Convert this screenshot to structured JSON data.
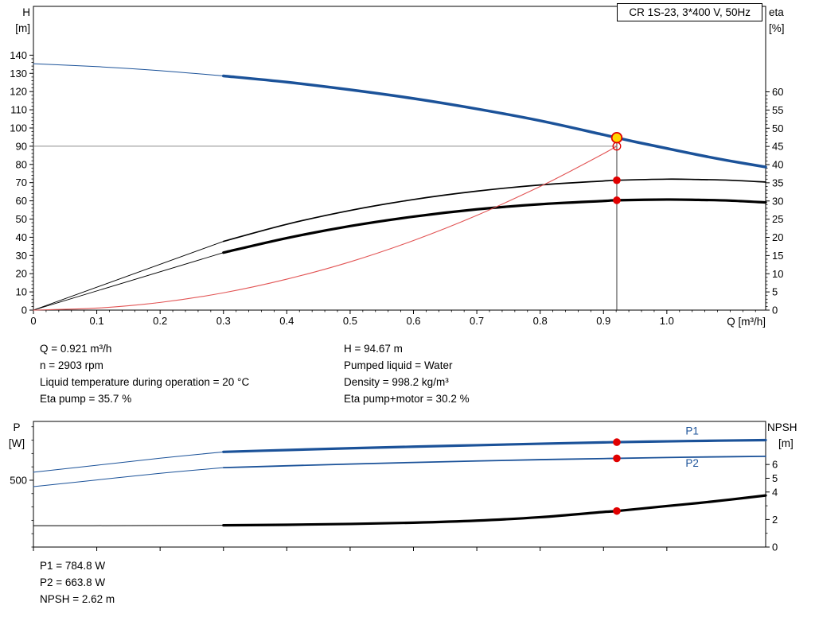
{
  "title_box": {
    "label": "CR 1S-23, 3*400 V, 50Hz"
  },
  "info_panel": {
    "left": [
      "Q = 0.921 m³/h",
      "n = 2903 rpm",
      "Liquid temperature during operation = 20 °C",
      "Eta pump = 35.7 %"
    ],
    "right": [
      "H = 94.67 m",
      "Pumped liquid = Water",
      "Density = 998.2 kg/m³",
      "Eta pump+motor = 30.2 %"
    ]
  },
  "result_panel": {
    "lines": [
      "P1 = 784.8 W",
      "P2 = 663.8 W",
      "NPSH = 2.62 m"
    ]
  },
  "colors": {
    "curve_blue": "#1b5299",
    "curve_black": "#000000",
    "system_red": "#e25555",
    "marker_red": "#e00000",
    "duty_yellow": "#ffd500",
    "ref_gray": "#8c8c8c",
    "ref_dark": "#3c3c3c",
    "frame": "#000000",
    "background": "#ffffff"
  },
  "chart_data": [
    {
      "name": "qh-eta-chart",
      "type": "line",
      "title": "CR 1S-23, 3*400 V, 50Hz",
      "x_axis": {
        "label": "Q [m³/h]",
        "min": 0,
        "max": 1.156,
        "major_ticks": [
          0,
          0.1,
          0.2,
          0.3,
          0.4,
          0.5,
          0.6,
          0.7,
          0.8,
          0.9,
          1.0
        ],
        "tick_labels": [
          "0",
          "0.1",
          "0.2",
          "0.3",
          "0.4",
          "0.5",
          "0.6",
          "0.7",
          "0.8",
          "0.9",
          "1.0"
        ],
        "minor_step": 0.02
      },
      "y_left": {
        "label_name": "H",
        "label_unit": "[m]",
        "min": 0,
        "max": 166.8,
        "major_ticks": [
          0,
          10,
          20,
          30,
          40,
          50,
          60,
          70,
          80,
          90,
          100,
          110,
          120,
          130,
          140
        ],
        "tick_labels": [
          "0",
          "10",
          "20",
          "30",
          "40",
          "50",
          "60",
          "70",
          "80",
          "90",
          "100",
          "110",
          "120",
          "130",
          "140"
        ],
        "minor_step": 2,
        "minor_max": 140
      },
      "y_right": {
        "label_name": "eta",
        "label_unit": "[%]",
        "min": 0,
        "max": 83.5,
        "major_ticks": [
          0,
          5,
          10,
          15,
          20,
          25,
          30,
          35,
          40,
          45,
          50,
          55,
          60
        ],
        "tick_labels": [
          "0",
          "5",
          "10",
          "15",
          "20",
          "25",
          "30",
          "35",
          "40",
          "45",
          "50",
          "55",
          "60"
        ],
        "minor_step": 1,
        "minor_max": 60
      },
      "series": [
        {
          "name": "qh-curve-extension",
          "axis": "left",
          "color": "#1b5299",
          "width": 1,
          "points": [
            [
              0,
              135.3
            ],
            [
              0.1,
              133.7
            ],
            [
              0.2,
              131.5
            ],
            [
              0.3,
              128.6
            ]
          ]
        },
        {
          "name": "qh-curve",
          "axis": "left",
          "color": "#1b5299",
          "width": 3.5,
          "points": [
            [
              0.3,
              128.6
            ],
            [
              0.4,
              125.2
            ],
            [
              0.5,
              121.0
            ],
            [
              0.6,
              116.2
            ],
            [
              0.7,
              110.5
            ],
            [
              0.8,
              104.0
            ],
            [
              0.9,
              96.3
            ],
            [
              0.921,
              94.67
            ],
            [
              0.95,
              92.4
            ],
            [
              1.0,
              88.8
            ],
            [
              1.05,
              85.2
            ],
            [
              1.1,
              81.9
            ],
            [
              1.156,
              78.6
            ]
          ]
        },
        {
          "name": "eta-pump-extension",
          "axis": "right",
          "color": "#000000",
          "width": 0.9,
          "points": [
            [
              0,
              0
            ],
            [
              0.3,
              18.9
            ]
          ]
        },
        {
          "name": "eta-pump-curve",
          "axis": "right",
          "color": "#000000",
          "width": 1.7,
          "points": [
            [
              0.3,
              18.9
            ],
            [
              0.4,
              23.6
            ],
            [
              0.5,
              27.4
            ],
            [
              0.6,
              30.4
            ],
            [
              0.7,
              32.7
            ],
            [
              0.8,
              34.4
            ],
            [
              0.9,
              35.5
            ],
            [
              0.921,
              35.7
            ],
            [
              1.0,
              36.0
            ],
            [
              1.05,
              35.9
            ],
            [
              1.1,
              35.7
            ],
            [
              1.156,
              35.2
            ]
          ]
        },
        {
          "name": "eta-pump-motor-extension",
          "axis": "right",
          "color": "#000000",
          "width": 0.9,
          "points": [
            [
              0,
              0
            ],
            [
              0.3,
              15.8
            ]
          ]
        },
        {
          "name": "eta-pump-motor-curve",
          "axis": "right",
          "color": "#000000",
          "width": 3.2,
          "points": [
            [
              0.3,
              15.8
            ],
            [
              0.4,
              19.8
            ],
            [
              0.5,
              23.1
            ],
            [
              0.6,
              25.7
            ],
            [
              0.7,
              27.7
            ],
            [
              0.8,
              29.1
            ],
            [
              0.9,
              30.0
            ],
            [
              0.921,
              30.2
            ],
            [
              1.0,
              30.4
            ],
            [
              1.05,
              30.3
            ],
            [
              1.1,
              30.1
            ],
            [
              1.156,
              29.6
            ]
          ]
        },
        {
          "name": "system-curve",
          "axis": "left",
          "color": "#e25555",
          "width": 1.1,
          "points": [
            [
              0,
              0
            ],
            [
              0.1,
              1.1
            ],
            [
              0.2,
              4.2
            ],
            [
              0.3,
              9.5
            ],
            [
              0.4,
              17.0
            ],
            [
              0.5,
              26.5
            ],
            [
              0.6,
              38.2
            ],
            [
              0.7,
              52.0
            ],
            [
              0.8,
              67.9
            ],
            [
              0.85,
              76.7
            ],
            [
              0.9,
              85.9
            ],
            [
              0.921,
              90.0
            ]
          ]
        }
      ],
      "ref_lines": [
        {
          "name": "duty-flow-line",
          "orient": "v",
          "axis": "left",
          "x": 0.921,
          "y1": 0,
          "y2": 94.67,
          "color": "#3c3c3c",
          "width": 1
        },
        {
          "name": "requested-head-line",
          "orient": "h",
          "axis": "left",
          "y": 90,
          "x1": 0,
          "x2": 0.921,
          "color": "#8c8c8c",
          "width": 1
        }
      ],
      "markers": [
        {
          "name": "duty-point",
          "axis": "left",
          "x": 0.921,
          "y": 94.67,
          "style": "duty",
          "fill": "#ffd500",
          "stroke": "#e00000"
        },
        {
          "name": "requested-duty-point",
          "axis": "left",
          "x": 0.921,
          "y": 90.0,
          "style": "open",
          "stroke": "#e00000"
        },
        {
          "name": "eta-pump-point",
          "axis": "right",
          "x": 0.921,
          "y": 35.7,
          "style": "dot",
          "fill": "#e00000"
        },
        {
          "name": "eta-pump-motor-point",
          "axis": "right",
          "x": 0.921,
          "y": 30.2,
          "style": "dot",
          "fill": "#e00000"
        }
      ],
      "curve_labels": []
    },
    {
      "name": "power-npsh-chart",
      "type": "line",
      "title": "",
      "x_axis": {
        "label": "",
        "min": 0,
        "max": 1.156,
        "major_ticks": [
          0,
          0.1,
          0.2,
          0.3,
          0.4,
          0.5,
          0.6,
          0.7,
          0.8,
          0.9,
          1.0
        ],
        "tick_labels": []
      },
      "y_left": {
        "label_name": "P",
        "label_unit": "[W]",
        "min": 0,
        "max": 940,
        "major_ticks": [
          500
        ],
        "tick_labels": [
          "500"
        ],
        "minor_step": 100,
        "minor_max": 900
      },
      "y_right": {
        "label_name": "NPSH",
        "label_unit": "[m]",
        "min": 0,
        "max": 9.13,
        "major_ticks": [
          0,
          2,
          4,
          5,
          6
        ],
        "tick_labels": [
          "0",
          "2",
          "4",
          "5",
          "6"
        ],
        "minor_step": 1,
        "minor_max": 6
      },
      "series": [
        {
          "name": "p1-extension",
          "axis": "left",
          "color": "#1b5299",
          "width": 1,
          "points": [
            [
              0,
              560
            ],
            [
              0.1,
              612
            ],
            [
              0.2,
              665
            ],
            [
              0.3,
              712
            ]
          ]
        },
        {
          "name": "p1-curve",
          "axis": "left",
          "color": "#1b5299",
          "width": 3.2,
          "points": [
            [
              0.3,
              712
            ],
            [
              0.4,
              726
            ],
            [
              0.5,
              739
            ],
            [
              0.6,
              751
            ],
            [
              0.7,
              762
            ],
            [
              0.8,
              773
            ],
            [
              0.9,
              783
            ],
            [
              0.921,
              784.8
            ],
            [
              1.0,
              791
            ],
            [
              1.08,
              796
            ],
            [
              1.156,
              800
            ]
          ]
        },
        {
          "name": "p2-extension",
          "axis": "left",
          "color": "#1b5299",
          "width": 1,
          "points": [
            [
              0,
              452
            ],
            [
              0.1,
              502
            ],
            [
              0.2,
              552
            ],
            [
              0.3,
              594
            ]
          ]
        },
        {
          "name": "p2-curve",
          "axis": "left",
          "color": "#1b5299",
          "width": 1.8,
          "points": [
            [
              0.3,
              594
            ],
            [
              0.4,
              608
            ],
            [
              0.5,
              621
            ],
            [
              0.6,
              633
            ],
            [
              0.7,
              644
            ],
            [
              0.8,
              654
            ],
            [
              0.9,
              662
            ],
            [
              0.921,
              663.8
            ],
            [
              1.0,
              670
            ],
            [
              1.08,
              675
            ],
            [
              1.156,
              679
            ]
          ]
        },
        {
          "name": "npsh-extension",
          "axis": "right",
          "color": "#000000",
          "width": 1,
          "points": [
            [
              0,
              1.55
            ],
            [
              0.15,
              1.56
            ],
            [
              0.3,
              1.58
            ]
          ]
        },
        {
          "name": "npsh-curve",
          "axis": "right",
          "color": "#000000",
          "width": 3.2,
          "points": [
            [
              0.3,
              1.58
            ],
            [
              0.4,
              1.62
            ],
            [
              0.5,
              1.68
            ],
            [
              0.6,
              1.77
            ],
            [
              0.7,
              1.92
            ],
            [
              0.8,
              2.17
            ],
            [
              0.9,
              2.55
            ],
            [
              0.921,
              2.62
            ],
            [
              1.0,
              2.98
            ],
            [
              1.05,
              3.2
            ],
            [
              1.1,
              3.45
            ],
            [
              1.156,
              3.75
            ]
          ]
        }
      ],
      "ref_lines": [],
      "markers": [
        {
          "name": "p1-point",
          "axis": "left",
          "x": 0.921,
          "y": 784.8,
          "style": "dot",
          "fill": "#e00000"
        },
        {
          "name": "p2-point",
          "axis": "left",
          "x": 0.921,
          "y": 663.8,
          "style": "dot",
          "fill": "#e00000"
        },
        {
          "name": "npsh-point",
          "axis": "right",
          "x": 0.921,
          "y": 2.62,
          "style": "dot",
          "fill": "#e00000"
        }
      ],
      "curve_labels": [
        {
          "name": "p1-curve-label",
          "text": "P1",
          "axis": "left",
          "x": 1.04,
          "y": 865,
          "color": "#1b5299"
        },
        {
          "name": "p2-curve-label",
          "text": "P2",
          "axis": "left",
          "x": 1.04,
          "y": 625,
          "color": "#1b5299"
        }
      ]
    }
  ]
}
